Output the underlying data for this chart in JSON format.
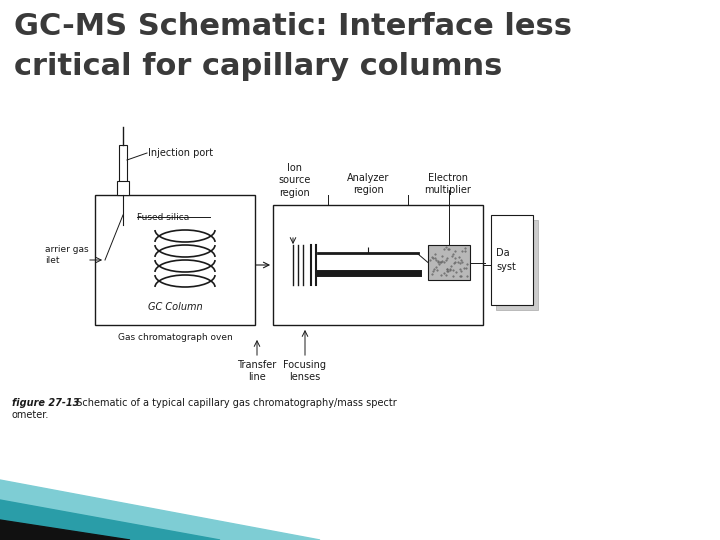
{
  "title_line1": "GC-MS Schematic: Interface less",
  "title_line2": "critical for capillary columns",
  "title_color": "#3a3a3a",
  "title_fontsize": 22,
  "title_fontweight": "bold",
  "bg_color": "#ffffff",
  "dc": "#1a1a1a",
  "labels": {
    "injection_port": "Injection port",
    "fused_silica": "Fused silica",
    "gc_column": "GC Column",
    "oven": "Gas chromatograph oven",
    "carrier_gas": "arrier gas\nilet",
    "ion_source": "Ion\nsource\nregion",
    "analyzer": "Analyzer\nregion",
    "electron_mult": "Electron\nmultiplier",
    "transfer_line": "Transfer\nline",
    "focusing_lenses": "Focusing\nlenses",
    "data_system": "Da\nsyst"
  },
  "caption_bold": "figure 27-13",
  "caption_rest": "  Schematic of a typical capillary gas chromatography/mass spectr",
  "caption_line2": "ometer.",
  "teal_color": "#2a9da8",
  "teal_light": "#7ecdd4",
  "black_color": "#111111"
}
